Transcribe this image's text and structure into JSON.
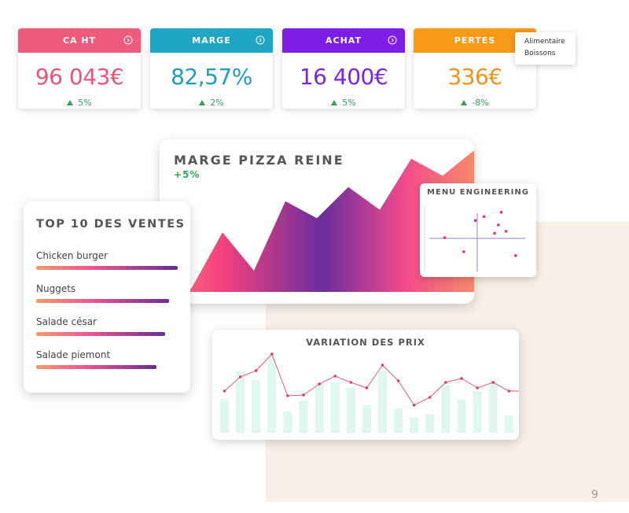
{
  "kpis": [
    {
      "label": "CA HT",
      "value": "96 043€",
      "trend": "5%",
      "color": "#ef5b7f",
      "text_color": "#ea5478"
    },
    {
      "label": "MARGE",
      "value": "82,57%",
      "trend": "2%",
      "color": "#1ea6c4",
      "text_color": "#1f9cc0"
    },
    {
      "label": "ACHAT",
      "value": "16 400€",
      "trend": "5%",
      "color": "#7c1ee6",
      "text_color": "#7d24e0"
    },
    {
      "label": "PERTES",
      "value": "336€",
      "trend": "-8%",
      "color": "#f99a17",
      "text_color": "#f5911a"
    }
  ],
  "pertes_dropdown": {
    "options": [
      "Alimentaire",
      "Boissons"
    ]
  },
  "marge_card": {
    "title": "MARGE PIZZA REINE",
    "delta": "+5%",
    "chart_data": {
      "type": "area",
      "values": [
        0.44,
        0.02,
        0.42,
        0.15,
        0.64,
        0.52,
        0.74,
        0.58,
        0.94,
        0.82,
        1.0
      ]
    }
  },
  "top10": {
    "title": "TOP 10 DES VENTES",
    "items": [
      {
        "label": "Chicken burger",
        "value": 1.0
      },
      {
        "label": "Nuggets",
        "value": 0.94
      },
      {
        "label": "Salade césar",
        "value": 0.91
      },
      {
        "label": "Salade piemont",
        "value": 0.85
      }
    ]
  },
  "menu_engineering": {
    "title": "MENU ENGINEERING",
    "chart_data": {
      "type": "scatter",
      "points": [
        [
          0.48,
          0.2
        ],
        [
          0.57,
          0.14
        ],
        [
          0.75,
          0.07
        ],
        [
          0.72,
          0.27
        ],
        [
          0.68,
          0.4
        ],
        [
          0.8,
          0.37
        ],
        [
          0.16,
          0.47
        ],
        [
          0.36,
          0.69
        ],
        [
          0.9,
          0.75
        ]
      ]
    }
  },
  "variation_prix": {
    "title": "VARIATION DES PRIX",
    "chart_data": {
      "type": "bar",
      "bars": [
        0.43,
        0.78,
        0.67,
        0.99,
        0.27,
        0.41,
        0.63,
        0.64,
        0.57,
        0.35,
        0.78,
        0.31,
        0.19,
        0.24,
        0.61,
        0.42,
        0.53,
        0.68,
        0.22,
        0.52
      ],
      "line": [
        0.53,
        0.71,
        0.79,
        1.0,
        0.47,
        0.48,
        0.62,
        0.72,
        0.64,
        0.57,
        0.86,
        0.66,
        0.35,
        0.45,
        0.64,
        0.69,
        0.57,
        0.64,
        0.53,
        0.53
      ]
    }
  },
  "page_number": "9"
}
